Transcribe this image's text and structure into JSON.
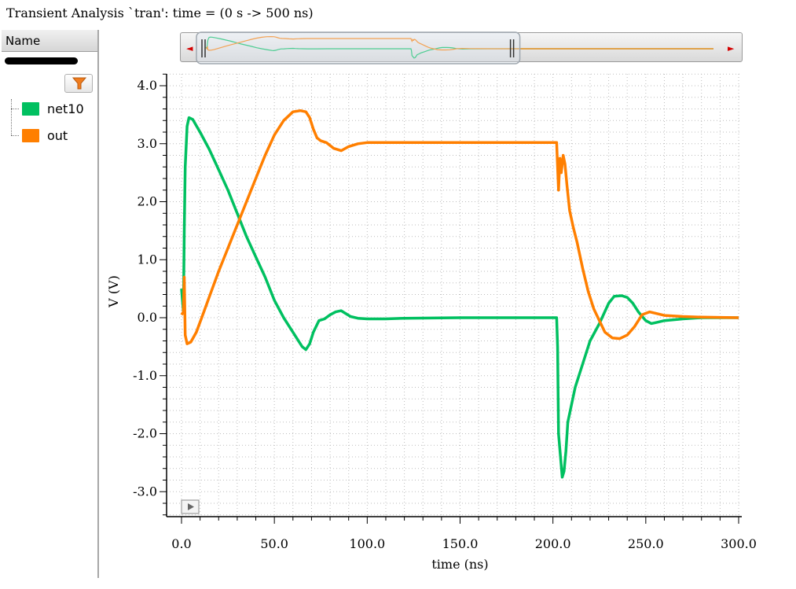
{
  "window_title": "Transient Analysis `tran': time = (0 s -> 500 ns)",
  "sidebar": {
    "header": "Name",
    "filter_button": "filter-icon"
  },
  "legend": [
    {
      "label": "net10",
      "color": "#00c060"
    },
    {
      "label": "out",
      "color": "#ff7f00"
    }
  ],
  "overview": {
    "left_arrow": "◄",
    "right_arrow": "►",
    "visible_range_ns": [
      0,
      300
    ],
    "total_range_ns": [
      0,
      500
    ]
  },
  "play_icon": "play-icon",
  "chart_data": {
    "type": "line",
    "xlabel": "time (ns)",
    "ylabel": "V (V)",
    "xlim": [
      0,
      300
    ],
    "ylim": [
      -3.5,
      4.2
    ],
    "grid": true,
    "x_ticks": [
      "0.0",
      "50.0",
      "100.0",
      "150.0",
      "200.0",
      "250.0",
      "300.0"
    ],
    "y_ticks": [
      "4.0",
      "3.0",
      "2.0",
      "1.0",
      "0.0",
      "-1.0",
      "-2.0",
      "-3.0"
    ],
    "series": [
      {
        "name": "net10",
        "color": "#00c060",
        "x": [
          0,
          1,
          1.5,
          2,
          3,
          4,
          6,
          10,
          15,
          20,
          25,
          30,
          35,
          40,
          45,
          50,
          55,
          60,
          65,
          67,
          69,
          71,
          74,
          77,
          80,
          83,
          86,
          88,
          91,
          95,
          100,
          110,
          120,
          150,
          170,
          190,
          200,
          202,
          202.5,
          203,
          205,
          206,
          207,
          208,
          210,
          212,
          215,
          220,
          225,
          230,
          233,
          237,
          240,
          243,
          246,
          250,
          253,
          256,
          260,
          270,
          280,
          290,
          300
        ],
        "y": [
          0.5,
          0.1,
          1.5,
          2.6,
          3.3,
          3.45,
          3.42,
          3.2,
          2.9,
          2.55,
          2.2,
          1.8,
          1.4,
          1.05,
          0.7,
          0.3,
          0.0,
          -0.25,
          -0.5,
          -0.55,
          -0.45,
          -0.25,
          -0.05,
          -0.02,
          0.05,
          0.1,
          0.12,
          0.08,
          0.02,
          -0.01,
          -0.02,
          -0.02,
          -0.01,
          0.0,
          0.0,
          0.0,
          0.0,
          0.0,
          -0.5,
          -2.0,
          -2.75,
          -2.65,
          -2.3,
          -1.8,
          -1.5,
          -1.2,
          -0.9,
          -0.4,
          -0.1,
          0.25,
          0.37,
          0.38,
          0.35,
          0.25,
          0.1,
          -0.05,
          -0.1,
          -0.08,
          -0.05,
          -0.02,
          0.0,
          0.0,
          0.0
        ]
      },
      {
        "name": "out",
        "color": "#ff7f00",
        "x": [
          0,
          1,
          1.5,
          2,
          3,
          5,
          8,
          12,
          16,
          20,
          25,
          30,
          35,
          40,
          45,
          50,
          55,
          60,
          64,
          67,
          69,
          71,
          73,
          75,
          78,
          82,
          86,
          90,
          95,
          100,
          110,
          150,
          180,
          200,
          202,
          202.5,
          203,
          203.8,
          204.5,
          205.5,
          206.5,
          207.5,
          209,
          211,
          213,
          216,
          219,
          222,
          225,
          228,
          232,
          236,
          240,
          244,
          248,
          252,
          256,
          260,
          270,
          280,
          300
        ],
        "y": [
          0.05,
          0.1,
          0.7,
          -0.3,
          -0.45,
          -0.42,
          -0.25,
          0.1,
          0.45,
          0.8,
          1.2,
          1.6,
          2.0,
          2.4,
          2.8,
          3.15,
          3.4,
          3.55,
          3.57,
          3.55,
          3.45,
          3.25,
          3.1,
          3.05,
          3.02,
          2.92,
          2.88,
          2.95,
          3.0,
          3.02,
          3.02,
          3.02,
          3.02,
          3.02,
          3.02,
          2.6,
          2.2,
          2.75,
          2.5,
          2.8,
          2.65,
          2.3,
          1.85,
          1.55,
          1.3,
          0.85,
          0.45,
          0.15,
          -0.05,
          -0.25,
          -0.35,
          -0.36,
          -0.3,
          -0.15,
          0.05,
          0.1,
          0.07,
          0.04,
          0.02,
          0.01,
          0.0
        ]
      }
    ]
  }
}
